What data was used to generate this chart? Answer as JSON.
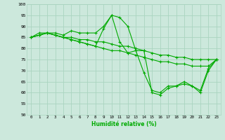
{
  "xlabel": "Humidité relative (%)",
  "ylabel": "",
  "bg_color": "#cce8dc",
  "grid_color": "#aad4c0",
  "line_color": "#00aa00",
  "xlim": [
    -0.5,
    23.5
  ],
  "ylim": [
    50,
    100
  ],
  "xticks": [
    0,
    1,
    2,
    3,
    4,
    5,
    6,
    7,
    8,
    9,
    10,
    11,
    12,
    13,
    14,
    15,
    16,
    17,
    18,
    19,
    20,
    21,
    22,
    23
  ],
  "yticks": [
    50,
    55,
    60,
    65,
    70,
    75,
    80,
    85,
    90,
    95,
    100
  ],
  "series": [
    [
      85,
      87,
      87,
      87,
      86,
      88,
      87,
      87,
      87,
      90,
      95,
      94,
      90,
      79,
      69,
      61,
      60,
      63,
      63,
      65,
      63,
      61,
      71,
      75
    ],
    [
      85,
      86,
      87,
      86,
      85,
      85,
      84,
      84,
      83,
      83,
      82,
      81,
      81,
      80,
      79,
      78,
      77,
      77,
      76,
      76,
      75,
      75,
      75,
      75
    ],
    [
      85,
      86,
      87,
      86,
      85,
      84,
      83,
      82,
      81,
      80,
      79,
      79,
      78,
      77,
      76,
      75,
      74,
      74,
      73,
      73,
      72,
      72,
      72,
      75
    ],
    [
      85,
      86,
      87,
      86,
      85,
      84,
      83,
      82,
      81,
      89,
      95,
      83,
      78,
      79,
      79,
      60,
      59,
      62,
      63,
      64,
      63,
      60,
      70,
      75
    ]
  ]
}
